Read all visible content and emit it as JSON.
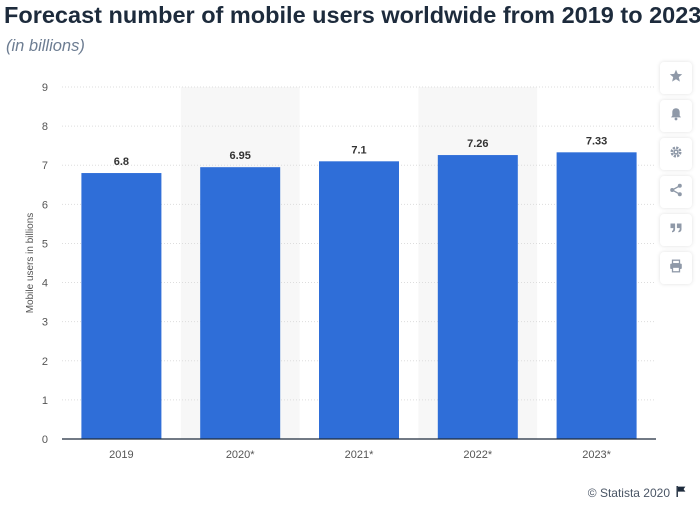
{
  "header": {
    "title": "Forecast number of mobile users worldwide from 2019 to 2023",
    "subtitle": "(in billions)"
  },
  "colors": {
    "bar": "#2f6ed8",
    "alt_band": "#f7f7f7",
    "grid": "#dddddd",
    "axis": "#1d2b3c",
    "tick_text": "#555555",
    "label_text": "#333333"
  },
  "sidebar": {
    "items": [
      {
        "icon": "star-icon"
      },
      {
        "icon": "bell-icon"
      },
      {
        "icon": "gear-icon"
      },
      {
        "icon": "share-icon"
      },
      {
        "icon": "quote-icon"
      },
      {
        "icon": "print-icon"
      }
    ]
  },
  "footer": {
    "credit": "© Statista 2020",
    "icon": "flag-icon"
  },
  "chart_data": {
    "type": "bar",
    "categories": [
      "2019",
      "2020*",
      "2021*",
      "2022*",
      "2023*"
    ],
    "values": [
      6.8,
      6.95,
      7.1,
      7.26,
      7.33
    ],
    "value_labels": [
      "6.8",
      "6.95",
      "7.1",
      "7.26",
      "7.33"
    ],
    "title": "Forecast number of mobile users worldwide from 2019 to 2023",
    "subtitle": "(in billions)",
    "xlabel": "",
    "ylabel": "Mobile users in billions",
    "ylim": [
      0,
      9
    ],
    "yticks": [
      0,
      1,
      2,
      3,
      4,
      5,
      6,
      7,
      8,
      9
    ],
    "grid": true,
    "legend": "none"
  }
}
